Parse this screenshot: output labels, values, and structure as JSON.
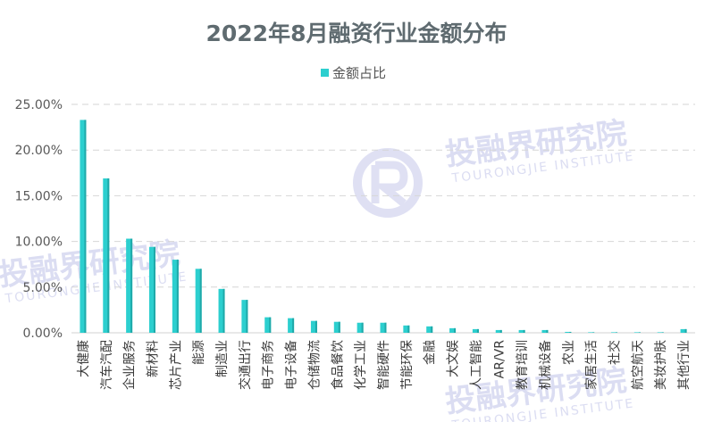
{
  "watermark": {
    "cn": "投融界研究院",
    "en": "TOURONGJIE INSTITUTE"
  },
  "chart_data": {
    "type": "bar",
    "title": "2022年8月融资行业金额分布",
    "legend": {
      "placement": "top",
      "entries": [
        "金额占比"
      ]
    },
    "series": [
      {
        "name": "金额占比",
        "color": "#2ccfcf",
        "values": [
          23.3,
          16.9,
          10.3,
          9.4,
          8.0,
          7.0,
          4.8,
          3.6,
          1.7,
          1.6,
          1.3,
          1.2,
          1.1,
          1.1,
          0.8,
          0.7,
          0.5,
          0.4,
          0.3,
          0.3,
          0.3,
          0.1,
          0.05,
          0.05,
          0.05,
          0.05,
          0.4
        ]
      }
    ],
    "categories": [
      "大健康",
      "汽车汽配",
      "企业服务",
      "新材料",
      "芯片产业",
      "能源",
      "制造业",
      "交通出行",
      "电子商务",
      "电子设备",
      "仓储物流",
      "食品餐饮",
      "化学工业",
      "智能硬件",
      "节能环保",
      "金融",
      "大文娱",
      "人工智能",
      "AR/VR",
      "教育培训",
      "机械设备",
      "农业",
      "家居生活",
      "社交",
      "航空航天",
      "美妆护肤",
      "其他行业"
    ],
    "y_ticks": [
      "0.00%",
      "5.00%",
      "10.00%",
      "15.00%",
      "20.00%",
      "25.00%"
    ],
    "ylim": [
      0,
      25
    ],
    "grid": true
  }
}
